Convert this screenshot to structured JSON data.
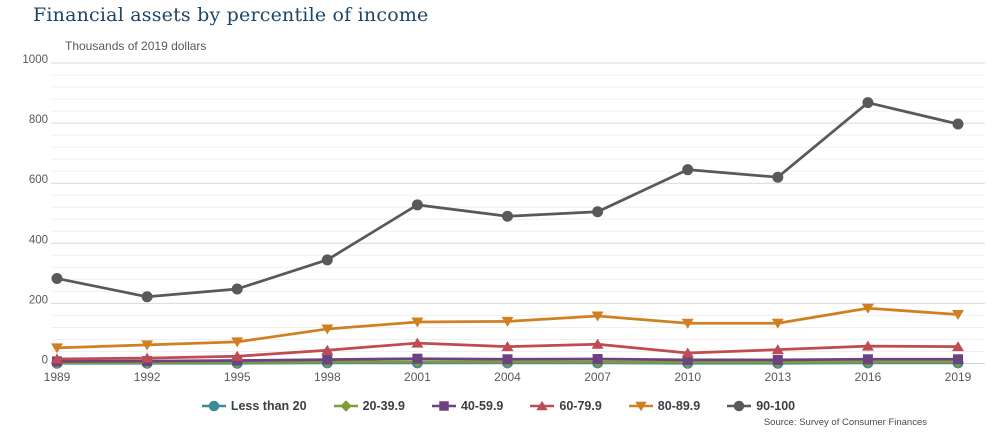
{
  "page": {
    "title": "Financial assets by percentile of income",
    "source": "Source: Survey of Consumer Finances"
  },
  "chart_data": {
    "type": "line",
    "title": "Financial assets by percentile of income",
    "unit_label": "Thousands of 2019 dollars",
    "xlabel": "",
    "ylabel": "Thousands of 2019 dollars",
    "x": [
      1989,
      1992,
      1995,
      1998,
      2001,
      2004,
      2007,
      2010,
      2013,
      2016,
      2019
    ],
    "ylim": [
      0,
      1000
    ],
    "yticks": [
      0,
      200,
      400,
      600,
      800,
      1000
    ],
    "minor_tick_step": 40,
    "grid": true,
    "legend_position": "bottom",
    "series": [
      {
        "name": "Less than 20",
        "color": "#3f8a99",
        "marker": "circle",
        "values": [
          1,
          1,
          1,
          2,
          2,
          2,
          2,
          1,
          1,
          2,
          2
        ]
      },
      {
        "name": "20-39.9",
        "color": "#7f9c3b",
        "marker": "diamond",
        "values": [
          3,
          3,
          4,
          5,
          6,
          5,
          5,
          4,
          4,
          5,
          5
        ]
      },
      {
        "name": "40-59.9",
        "color": "#6d4280",
        "marker": "square",
        "values": [
          7,
          8,
          10,
          13,
          16,
          14,
          15,
          12,
          12,
          14,
          14
        ]
      },
      {
        "name": "60-79.9",
        "color": "#bf4b53",
        "marker": "triangle-up",
        "values": [
          15,
          18,
          24,
          44,
          68,
          56,
          64,
          35,
          46,
          58,
          56
        ]
      },
      {
        "name": "80-89.9",
        "color": "#d08020",
        "marker": "triangle-down",
        "values": [
          52,
          62,
          72,
          115,
          138,
          140,
          158,
          134,
          134,
          184,
          163
        ]
      },
      {
        "name": "90-100",
        "color": "#595959",
        "marker": "circle",
        "values": [
          283,
          222,
          248,
          345,
          528,
          490,
          505,
          645,
          620,
          868,
          797
        ]
      }
    ],
    "source": "Source: Survey of Consumer Finances"
  }
}
